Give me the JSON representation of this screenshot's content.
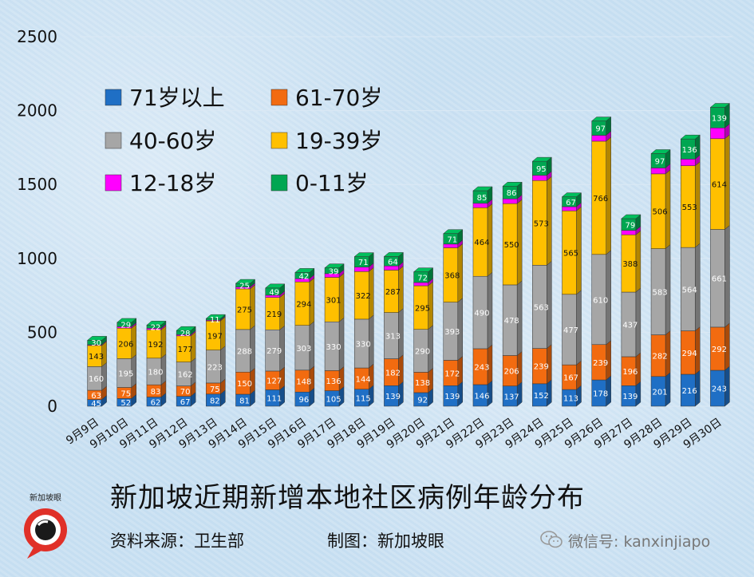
{
  "chart_data": {
    "type": "bar",
    "stacked": true,
    "title": "新加坡近期新增本地社区病例年龄分布",
    "xlabel": "",
    "ylabel": "",
    "ylim": [
      0,
      2500
    ],
    "yticks": [
      "0",
      "500",
      "1000",
      "1500",
      "2000",
      "2500"
    ],
    "grid": true,
    "legend_position": "top-left",
    "categories": [
      "9月9日",
      "9月10日",
      "9月11日",
      "9月12日",
      "9月13日",
      "9月14日",
      "9月15日",
      "9月16日",
      "9月17日",
      "9月18日",
      "9月19日",
      "9月20日",
      "9月21日",
      "9月22日",
      "9月23日",
      "9月24日",
      "9月25日",
      "9月26日",
      "9月27日",
      "9月28日",
      "9月29日",
      "9月30日"
    ],
    "series": [
      {
        "name": "71岁以上",
        "color": "#1f6fc5",
        "values": [
          45,
          52,
          62,
          67,
          82,
          81,
          111,
          96,
          105,
          115,
          139,
          92,
          139,
          146,
          137,
          152,
          113,
          178,
          139,
          201,
          216,
          243
        ]
      },
      {
        "name": "61-70岁",
        "color": "#f26b10",
        "values": [
          63,
          75,
          83,
          70,
          75,
          150,
          127,
          148,
          136,
          144,
          182,
          138,
          172,
          243,
          206,
          239,
          167,
          239,
          196,
          282,
          294,
          292
        ]
      },
      {
        "name": "40-60岁",
        "color": "#a6a6a6",
        "values": [
          160,
          195,
          180,
          162,
          223,
          288,
          279,
          303,
          330,
          330,
          313,
          290,
          393,
          490,
          478,
          563,
          477,
          610,
          437,
          583,
          564,
          661
        ]
      },
      {
        "name": "19-39岁",
        "color": "#ffc000",
        "values": [
          143,
          206,
          192,
          177,
          197,
          275,
          219,
          294,
          301,
          322,
          287,
          295,
          368,
          464,
          550,
          573,
          565,
          766,
          388,
          506,
          553,
          614
        ]
      },
      {
        "name": "12-18岁",
        "color": "#ff00ff",
        "values": [
          5,
          10,
          10,
          8,
          5,
          12,
          15,
          22,
          25,
          30,
          28,
          22,
          25,
          30,
          32,
          35,
          28,
          40,
          30,
          40,
          45,
          73
        ]
      },
      {
        "name": "0-11岁",
        "color": "#00a651",
        "values": [
          30,
          29,
          22,
          28,
          11,
          25,
          49,
          42,
          39,
          71,
          64,
          72,
          71,
          85,
          86,
          95,
          67,
          97,
          79,
          97,
          136,
          139
        ]
      }
    ],
    "labeled_series": [
      "71岁以上",
      "61-70岁",
      "40-60岁",
      "19-39岁",
      "0-11岁"
    ]
  },
  "footer": {
    "source": "资料来源：卫生部",
    "maker": "制图：新加坡眼",
    "wechat": "微信号: kanxinjiapo",
    "logo_text": "新加坡眼"
  },
  "icons": {
    "wechat": "wechat-icon",
    "logo": "magnifier-logo-icon"
  }
}
